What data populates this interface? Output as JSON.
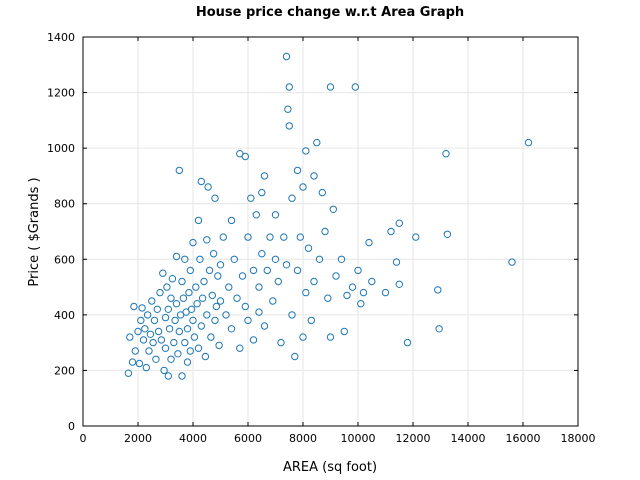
{
  "chart_data": {
    "type": "scatter",
    "title": "House price change w.r.t Area Graph",
    "xlabel": "AREA (sq foot)",
    "ylabel": "Price ( $Grands )",
    "xlim": [
      0,
      18000
    ],
    "ylim": [
      0,
      1400
    ],
    "xticks": [
      0,
      2000,
      4000,
      6000,
      8000,
      10000,
      12000,
      14000,
      16000,
      18000
    ],
    "yticks": [
      0,
      200,
      400,
      600,
      800,
      1000,
      1200,
      1400
    ],
    "grid": true,
    "marker": "hollow-circle",
    "colors": {
      "marker": "#1f77b4",
      "grid": "#e6e6e6",
      "axes": "#000000"
    },
    "points": [
      [
        1650,
        190
      ],
      [
        1700,
        320
      ],
      [
        1800,
        230
      ],
      [
        1850,
        430
      ],
      [
        1900,
        270
      ],
      [
        2000,
        340
      ],
      [
        2050,
        225
      ],
      [
        2100,
        380
      ],
      [
        2150,
        425
      ],
      [
        2200,
        310
      ],
      [
        2250,
        350
      ],
      [
        2300,
        210
      ],
      [
        2350,
        400
      ],
      [
        2400,
        270
      ],
      [
        2450,
        330
      ],
      [
        2500,
        450
      ],
      [
        2550,
        300
      ],
      [
        2600,
        380
      ],
      [
        2650,
        240
      ],
      [
        2700,
        420
      ],
      [
        2750,
        340
      ],
      [
        2800,
        480
      ],
      [
        2850,
        310
      ],
      [
        2900,
        550
      ],
      [
        2950,
        200
      ],
      [
        3000,
        390
      ],
      [
        3000,
        280
      ],
      [
        3050,
        500
      ],
      [
        3100,
        420
      ],
      [
        3100,
        180
      ],
      [
        3150,
        350
      ],
      [
        3200,
        460
      ],
      [
        3200,
        240
      ],
      [
        3250,
        530
      ],
      [
        3300,
        300
      ],
      [
        3350,
        380
      ],
      [
        3400,
        610
      ],
      [
        3400,
        440
      ],
      [
        3450,
        260
      ],
      [
        3500,
        920
      ],
      [
        3500,
        340
      ],
      [
        3550,
        400
      ],
      [
        3600,
        520
      ],
      [
        3600,
        180
      ],
      [
        3650,
        460
      ],
      [
        3700,
        300
      ],
      [
        3700,
        600
      ],
      [
        3750,
        410
      ],
      [
        3800,
        230
      ],
      [
        3800,
        350
      ],
      [
        3850,
        480
      ],
      [
        3900,
        560
      ],
      [
        3900,
        270
      ],
      [
        3950,
        420
      ],
      [
        4000,
        660
      ],
      [
        4000,
        380
      ],
      [
        4050,
        320
      ],
      [
        4100,
        500
      ],
      [
        4150,
        440
      ],
      [
        4200,
        740
      ],
      [
        4200,
        280
      ],
      [
        4250,
        600
      ],
      [
        4300,
        880
      ],
      [
        4300,
        360
      ],
      [
        4350,
        460
      ],
      [
        4400,
        520
      ],
      [
        4450,
        250
      ],
      [
        4500,
        670
      ],
      [
        4500,
        400
      ],
      [
        4550,
        860
      ],
      [
        4600,
        560
      ],
      [
        4650,
        320
      ],
      [
        4700,
        470
      ],
      [
        4750,
        620
      ],
      [
        4800,
        820
      ],
      [
        4800,
        380
      ],
      [
        4850,
        430
      ],
      [
        4900,
        540
      ],
      [
        4950,
        290
      ],
      [
        5000,
        580
      ],
      [
        5000,
        450
      ],
      [
        5100,
        680
      ],
      [
        5200,
        400
      ],
      [
        5300,
        500
      ],
      [
        5400,
        740
      ],
      [
        5400,
        350
      ],
      [
        5500,
        600
      ],
      [
        5600,
        460
      ],
      [
        5700,
        980
      ],
      [
        5700,
        280
      ],
      [
        5800,
        540
      ],
      [
        5900,
        430
      ],
      [
        5900,
        970
      ],
      [
        6000,
        680
      ],
      [
        6000,
        380
      ],
      [
        6100,
        820
      ],
      [
        6200,
        560
      ],
      [
        6200,
        310
      ],
      [
        6300,
        760
      ],
      [
        6400,
        500
      ],
      [
        6400,
        410
      ],
      [
        6500,
        840
      ],
      [
        6500,
        620
      ],
      [
        6600,
        900
      ],
      [
        6600,
        360
      ],
      [
        6700,
        560
      ],
      [
        6800,
        680
      ],
      [
        6900,
        450
      ],
      [
        7000,
        760
      ],
      [
        7000,
        600
      ],
      [
        7100,
        520
      ],
      [
        7200,
        300
      ],
      [
        7300,
        680
      ],
      [
        7400,
        1330
      ],
      [
        7400,
        580
      ],
      [
        7450,
        1140
      ],
      [
        7500,
        1220
      ],
      [
        7500,
        1080
      ],
      [
        7600,
        820
      ],
      [
        7600,
        400
      ],
      [
        7700,
        250
      ],
      [
        7800,
        920
      ],
      [
        7800,
        560
      ],
      [
        7900,
        680
      ],
      [
        8000,
        320
      ],
      [
        8000,
        860
      ],
      [
        8100,
        990
      ],
      [
        8100,
        480
      ],
      [
        8200,
        640
      ],
      [
        8300,
        380
      ],
      [
        8400,
        900
      ],
      [
        8400,
        520
      ],
      [
        8500,
        1020
      ],
      [
        8600,
        600
      ],
      [
        8700,
        840
      ],
      [
        8800,
        700
      ],
      [
        8900,
        460
      ],
      [
        9000,
        1220
      ],
      [
        9000,
        320
      ],
      [
        9100,
        780
      ],
      [
        9200,
        540
      ],
      [
        9400,
        600
      ],
      [
        9500,
        340
      ],
      [
        9600,
        470
      ],
      [
        9800,
        500
      ],
      [
        9900,
        1220
      ],
      [
        10000,
        560
      ],
      [
        10100,
        440
      ],
      [
        10200,
        480
      ],
      [
        10400,
        660
      ],
      [
        10500,
        520
      ],
      [
        11000,
        480
      ],
      [
        11200,
        700
      ],
      [
        11400,
        590
      ],
      [
        11500,
        730
      ],
      [
        11500,
        510
      ],
      [
        11800,
        300
      ],
      [
        12100,
        680
      ],
      [
        12900,
        490
      ],
      [
        12950,
        350
      ],
      [
        13200,
        980
      ],
      [
        13250,
        690
      ],
      [
        15600,
        590
      ],
      [
        16200,
        1020
      ]
    ]
  }
}
